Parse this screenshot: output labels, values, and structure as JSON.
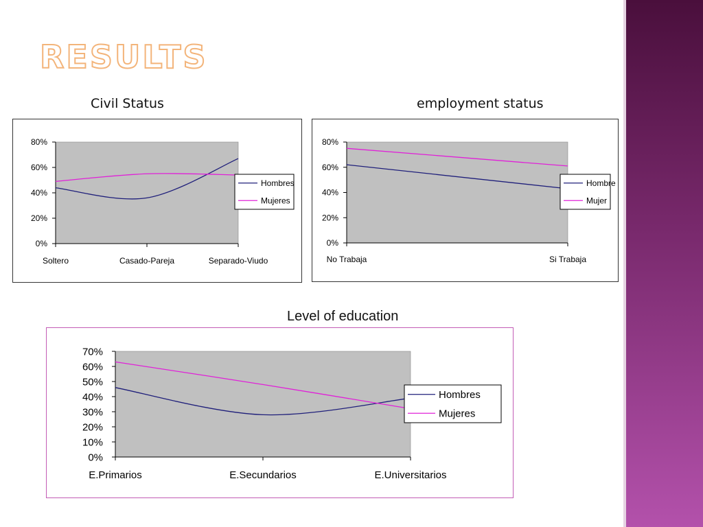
{
  "slide": {
    "title": "RESULTS"
  },
  "colors": {
    "hombres": "#1e1e7a",
    "mujeres": "#e020d8",
    "plot_bg": "#c0c0c0",
    "accent_sidebar": "#7a2a6e"
  },
  "sections": {
    "civil": {
      "title": "Civil Status"
    },
    "employment": {
      "title": "employment status"
    },
    "education": {
      "title": "Level of education"
    }
  },
  "chart_data": [
    {
      "id": "civil",
      "type": "line",
      "categories": [
        "Soltero",
        "Casado-Pareja",
        "Separado-Viudo"
      ],
      "series": [
        {
          "name": "Hombres",
          "values": [
            0.44,
            0.36,
            0.67
          ]
        },
        {
          "name": "Mujeres",
          "values": [
            0.49,
            0.55,
            0.54
          ]
        }
      ],
      "ylim": [
        0,
        0.8
      ],
      "yticks": [
        "0%",
        "20%",
        "40%",
        "60%",
        "80%"
      ],
      "smooth": true,
      "legend": "right",
      "grid": false
    },
    {
      "id": "employment",
      "type": "line",
      "categories": [
        "No Trabaja",
        "Si Trabaja"
      ],
      "series": [
        {
          "name": "Hombre",
          "values": [
            0.62,
            0.43
          ]
        },
        {
          "name": "Mujer",
          "values": [
            0.75,
            0.61
          ]
        }
      ],
      "ylim": [
        0,
        0.8
      ],
      "yticks": [
        "0%",
        "20%",
        "40%",
        "60%",
        "80%"
      ],
      "smooth": false,
      "legend": "right",
      "grid": false
    },
    {
      "id": "education",
      "type": "line",
      "categories": [
        "E.Primarios",
        "E.Secundarios",
        "E.Universitarios"
      ],
      "series": [
        {
          "name": "Hombres",
          "values": [
            0.46,
            0.28,
            0.39
          ]
        },
        {
          "name": "Mujeres",
          "values": [
            0.63,
            0.48,
            0.32
          ]
        }
      ],
      "ylim": [
        0,
        0.7
      ],
      "yticks": [
        "0%",
        "10%",
        "20%",
        "30%",
        "40%",
        "50%",
        "60%",
        "70%"
      ],
      "smooth": true,
      "legend": "right",
      "grid": false
    }
  ]
}
